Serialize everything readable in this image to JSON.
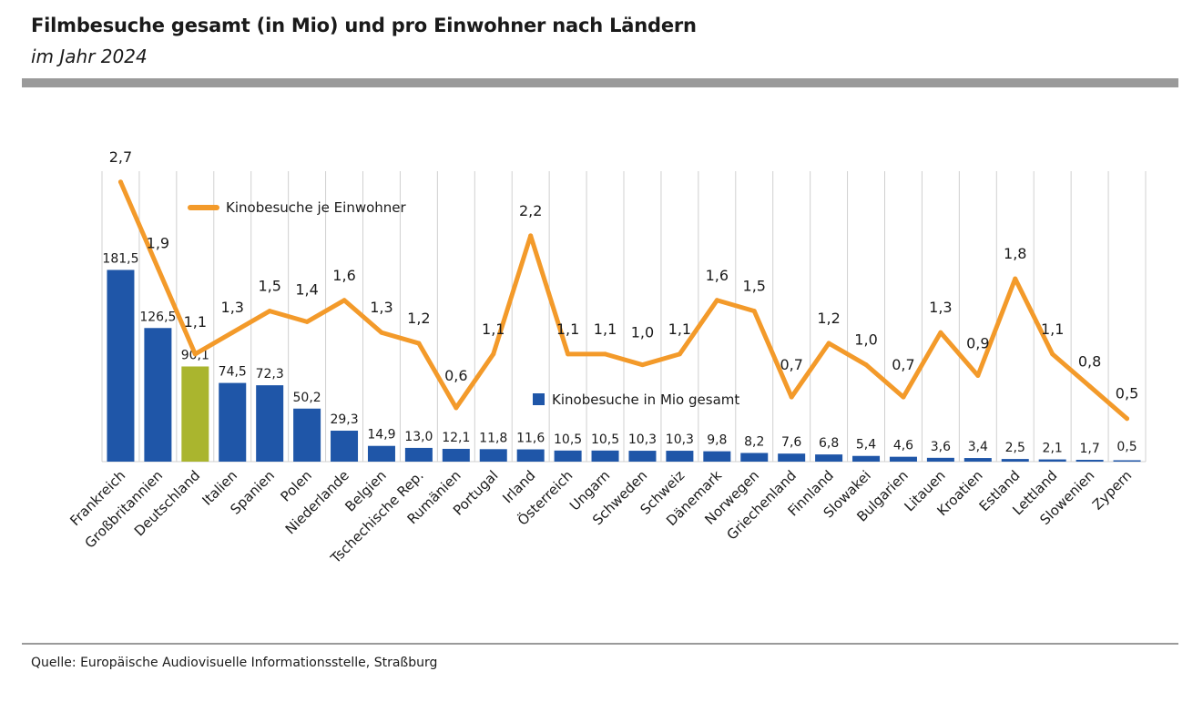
{
  "title": "Filmbesuche gesamt (in Mio) und pro Einwohner nach Ländern",
  "subtitle": "im Jahr 2024",
  "source": "Quelle: Europäische Audiovisuelle Informationsstelle, Straßburg",
  "colors": {
    "bar": "#1f56a8",
    "bar_highlight": "#aab52e",
    "line": "#f39a2a",
    "grid": "#d0d0d0",
    "label": "#1a1a1a"
  },
  "chart_data": {
    "type": "bar",
    "title": "Filmbesuche gesamt (in Mio) und pro Einwohner nach Ländern",
    "subtitle": "im Jahr 2024",
    "categories": [
      "Frankreich",
      "Großbritannien",
      "Deutschland",
      "Italien",
      "Spanien",
      "Polen",
      "Niederlande",
      "Belgien",
      "Tschechische Rep.",
      "Rumänien",
      "Portugal",
      "Irland",
      "Österreich",
      "Ungarn",
      "Schweden",
      "Schweiz",
      "Dänemark",
      "Norwegen",
      "Griechenland",
      "Finnland",
      "Slowakei",
      "Bulgarien",
      "Litauen",
      "Kroatien",
      "Estland",
      "Lettland",
      "Slowenien",
      "Zypern"
    ],
    "highlight_category": "Deutschland",
    "series": [
      {
        "name": "Kinobesuche in Mio gesamt",
        "type": "bar",
        "values": [
          181.5,
          126.5,
          90.1,
          74.5,
          72.3,
          50.2,
          29.3,
          14.9,
          13.0,
          12.1,
          11.8,
          11.6,
          10.5,
          10.5,
          10.3,
          10.3,
          9.8,
          8.2,
          7.6,
          6.8,
          5.4,
          4.6,
          3.6,
          3.4,
          2.5,
          2.1,
          1.7,
          0.5
        ],
        "labels": [
          "181,5",
          "126,5",
          "90,1",
          "74,5",
          "72,3",
          "50,2",
          "29,3",
          "14,9",
          "13,0",
          "12,1",
          "11,8",
          "11,6",
          "10,5",
          "10,5",
          "10,3",
          "10,3",
          "9,8",
          "8,2",
          "7,6",
          "6,8",
          "5,4",
          "4,6",
          "3,6",
          "3,4",
          "2,5",
          "2,1",
          "1,7",
          "0,5"
        ]
      },
      {
        "name": "Kinobesuche je Einwohner",
        "type": "line",
        "values": [
          2.7,
          1.9,
          1.1,
          1.3,
          1.5,
          1.4,
          1.6,
          1.3,
          1.2,
          0.6,
          1.1,
          2.2,
          1.1,
          1.1,
          1.0,
          1.1,
          1.6,
          1.5,
          0.7,
          1.2,
          1.0,
          0.7,
          1.3,
          0.9,
          1.8,
          1.1,
          0.8,
          0.5
        ],
        "labels": [
          "2,7",
          "1,9",
          "1,1",
          "1,3",
          "1,5",
          "1,4",
          "1,6",
          "1,3",
          "1,2",
          "0,6",
          "1,1",
          "2,2",
          "1,1",
          "1,1",
          "1,0",
          "1,1",
          "1,6",
          "1,5",
          "0,7",
          "1,2",
          "1,0",
          "0,7",
          "1,3",
          "0,9",
          "1,8",
          "1,1",
          "0,8",
          "0,5"
        ]
      }
    ],
    "ylim_bar": [
      0,
      275
    ],
    "ylim_line": [
      0.1,
      2.8
    ],
    "grid": "vertical",
    "legend": [
      {
        "name": "Kinobesuche je Einwohner",
        "position": "top-left"
      },
      {
        "name": "Kinobesuche in Mio gesamt",
        "position": "center"
      }
    ]
  }
}
